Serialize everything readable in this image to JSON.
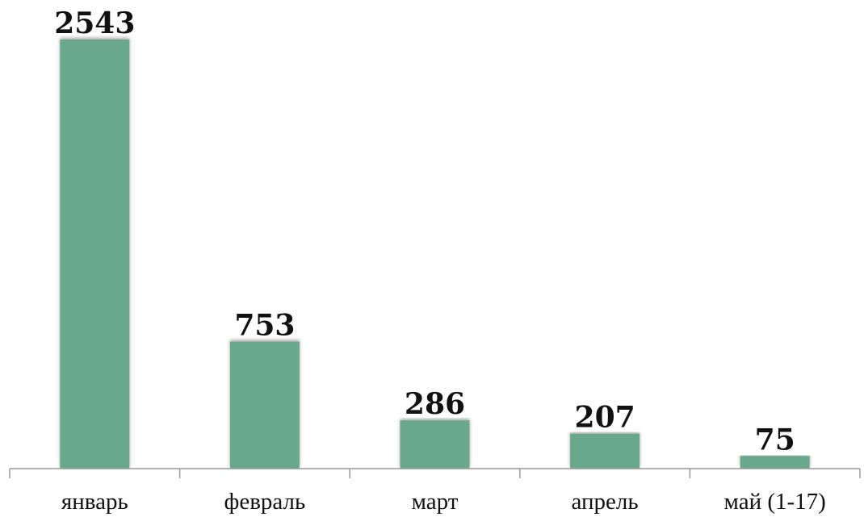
{
  "chart_data": {
    "type": "bar",
    "categories": [
      "январь",
      "февраль",
      "март",
      "апрель",
      "май (1-17)"
    ],
    "values": [
      2543,
      753,
      286,
      207,
      75
    ],
    "title": "",
    "xlabel": "",
    "ylabel": "",
    "ylim": [
      0,
      2800
    ],
    "grid": false,
    "legend": "none",
    "bar_color": "#69a88a",
    "axis_color": "#9a9a9a"
  }
}
